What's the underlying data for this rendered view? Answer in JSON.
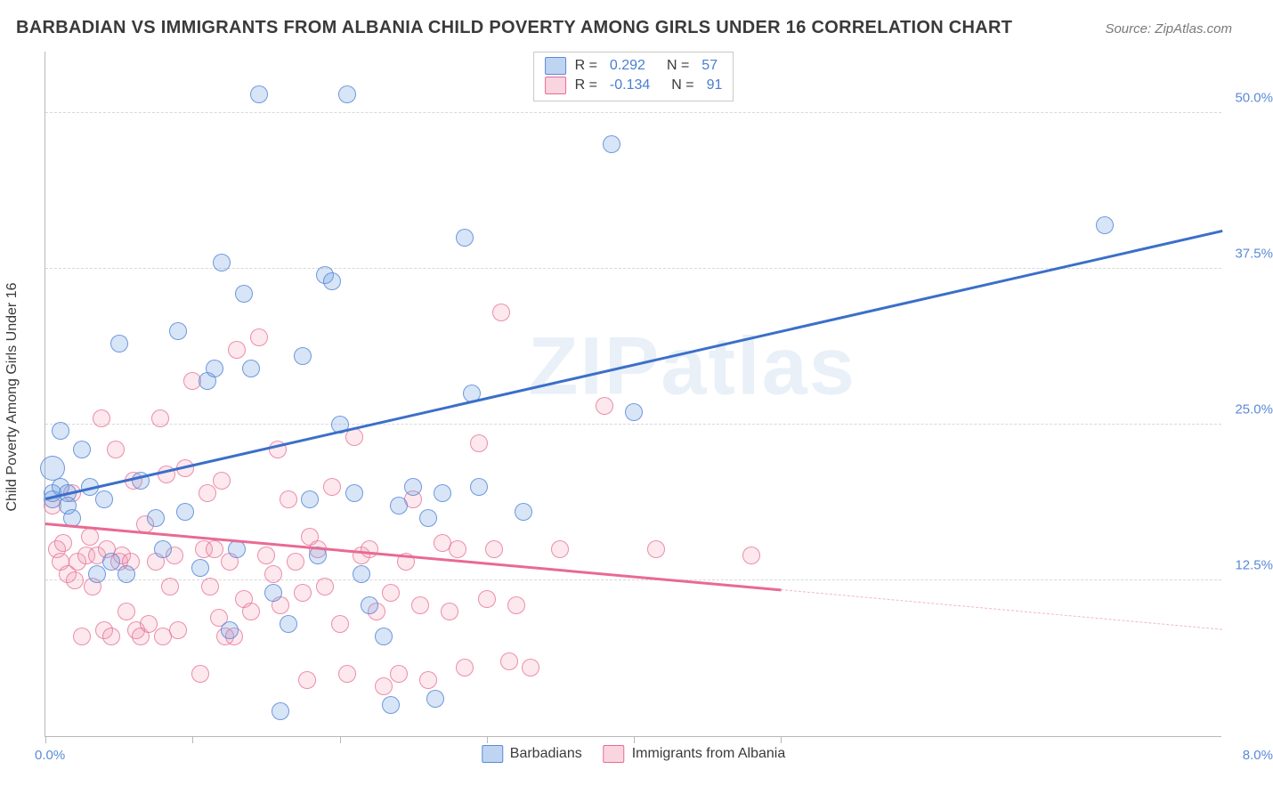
{
  "title": "BARBADIAN VS IMMIGRANTS FROM ALBANIA CHILD POVERTY AMONG GIRLS UNDER 16 CORRELATION CHART",
  "source": "Source: ZipAtlas.com",
  "watermark": "ZIPatlas",
  "ylabel": "Child Poverty Among Girls Under 16",
  "chart": {
    "type": "scatter",
    "xlim": [
      0,
      8
    ],
    "ylim": [
      0,
      55
    ],
    "xtick_positions": [
      0,
      1,
      2,
      3,
      4,
      5
    ],
    "xtick_labels": {
      "min": "0.0%",
      "max": "8.0%"
    },
    "ytick_positions": [
      12.5,
      25,
      37.5,
      50
    ],
    "ytick_labels": [
      "12.5%",
      "25.0%",
      "37.5%",
      "50.0%"
    ],
    "grid_color": "#d8d8d8",
    "axis_color": "#b8b8b8",
    "background_color": "#ffffff",
    "point_radius": 9,
    "point_radius_large": 13
  },
  "series": {
    "blue": {
      "label": "Barbadians",
      "color_fill": "rgba(110,160,225,0.28)",
      "color_stroke": "#5a8ad8",
      "R": "0.292",
      "N": "57",
      "trend": {
        "x1": 0.0,
        "y1": 19.0,
        "x2": 8.0,
        "y2": 40.5,
        "solid_until": 8.0
      },
      "points": [
        [
          0.05,
          21.5,
          13
        ],
        [
          0.05,
          19.5,
          9
        ],
        [
          0.05,
          19.0,
          9
        ],
        [
          0.1,
          20.0,
          9
        ],
        [
          0.1,
          24.5,
          9
        ],
        [
          0.15,
          19.5,
          9
        ],
        [
          0.15,
          18.5,
          9
        ],
        [
          0.18,
          17.5,
          9
        ],
        [
          0.25,
          23.0,
          9
        ],
        [
          0.3,
          20.0,
          9
        ],
        [
          0.35,
          13.0,
          9
        ],
        [
          0.4,
          19.0,
          9
        ],
        [
          0.45,
          14.0,
          9
        ],
        [
          0.5,
          31.5,
          9
        ],
        [
          0.55,
          13.0,
          9
        ],
        [
          0.65,
          20.5,
          9
        ],
        [
          0.75,
          17.5,
          9
        ],
        [
          0.8,
          15.0,
          9
        ],
        [
          0.9,
          32.5,
          9
        ],
        [
          0.95,
          18.0,
          9
        ],
        [
          1.05,
          13.5,
          9
        ],
        [
          1.1,
          28.5,
          9
        ],
        [
          1.15,
          29.5,
          9
        ],
        [
          1.2,
          38.0,
          9
        ],
        [
          1.25,
          8.5,
          9
        ],
        [
          1.3,
          15.0,
          9
        ],
        [
          1.35,
          35.5,
          9
        ],
        [
          1.4,
          29.5,
          9
        ],
        [
          1.45,
          51.5,
          9
        ],
        [
          1.55,
          11.5,
          9
        ],
        [
          1.6,
          2.0,
          9
        ],
        [
          1.65,
          9.0,
          9
        ],
        [
          1.75,
          30.5,
          9
        ],
        [
          1.8,
          19.0,
          9
        ],
        [
          1.85,
          14.5,
          9
        ],
        [
          1.9,
          37.0,
          9
        ],
        [
          1.95,
          36.5,
          9
        ],
        [
          2.0,
          25.0,
          9
        ],
        [
          2.05,
          51.5,
          9
        ],
        [
          2.1,
          19.5,
          9
        ],
        [
          2.15,
          13.0,
          9
        ],
        [
          2.2,
          10.5,
          9
        ],
        [
          2.3,
          8.0,
          9
        ],
        [
          2.35,
          2.5,
          9
        ],
        [
          2.4,
          18.5,
          9
        ],
        [
          2.5,
          20.0,
          9
        ],
        [
          2.6,
          17.5,
          9
        ],
        [
          2.65,
          3.0,
          9
        ],
        [
          2.7,
          19.5,
          9
        ],
        [
          2.85,
          40.0,
          9
        ],
        [
          2.9,
          27.5,
          9
        ],
        [
          2.95,
          20.0,
          9
        ],
        [
          3.25,
          18.0,
          9
        ],
        [
          3.85,
          47.5,
          9
        ],
        [
          4.0,
          26.0,
          9
        ],
        [
          7.2,
          41.0,
          9
        ]
      ]
    },
    "pink": {
      "label": "Immigrants from Albania",
      "color_fill": "rgba(240,150,175,0.22)",
      "color_stroke": "#e86a95",
      "R": "-0.134",
      "N": "91",
      "trend": {
        "x1": 0.0,
        "y1": 17.0,
        "x2": 8.0,
        "y2": 8.5,
        "solid_until": 5.0
      },
      "points": [
        [
          0.05,
          18.5,
          9
        ],
        [
          0.08,
          15.0,
          9
        ],
        [
          0.1,
          14.0,
          9
        ],
        [
          0.12,
          15.5,
          9
        ],
        [
          0.15,
          13.0,
          9
        ],
        [
          0.18,
          19.5,
          9
        ],
        [
          0.2,
          12.5,
          9
        ],
        [
          0.22,
          14.0,
          9
        ],
        [
          0.25,
          8.0,
          9
        ],
        [
          0.28,
          14.5,
          9
        ],
        [
          0.3,
          16.0,
          9
        ],
        [
          0.32,
          12.0,
          9
        ],
        [
          0.35,
          14.5,
          9
        ],
        [
          0.38,
          25.5,
          9
        ],
        [
          0.4,
          8.5,
          9
        ],
        [
          0.42,
          15.0,
          9
        ],
        [
          0.45,
          8.0,
          9
        ],
        [
          0.48,
          23.0,
          9
        ],
        [
          0.5,
          14.0,
          9
        ],
        [
          0.52,
          14.5,
          9
        ],
        [
          0.55,
          10.0,
          9
        ],
        [
          0.58,
          14.0,
          9
        ],
        [
          0.6,
          20.5,
          9
        ],
        [
          0.62,
          8.5,
          9
        ],
        [
          0.65,
          8.0,
          9
        ],
        [
          0.68,
          17.0,
          9
        ],
        [
          0.7,
          9.0,
          9
        ],
        [
          0.75,
          14.0,
          9
        ],
        [
          0.78,
          25.5,
          9
        ],
        [
          0.8,
          8.0,
          9
        ],
        [
          0.82,
          21.0,
          9
        ],
        [
          0.85,
          12.0,
          9
        ],
        [
          0.88,
          14.5,
          9
        ],
        [
          0.9,
          8.5,
          9
        ],
        [
          0.95,
          21.5,
          9
        ],
        [
          1.0,
          28.5,
          9
        ],
        [
          1.05,
          5.0,
          9
        ],
        [
          1.08,
          15.0,
          9
        ],
        [
          1.1,
          19.5,
          9
        ],
        [
          1.12,
          12.0,
          9
        ],
        [
          1.15,
          15.0,
          9
        ],
        [
          1.18,
          9.5,
          9
        ],
        [
          1.2,
          20.5,
          9
        ],
        [
          1.22,
          8.0,
          9
        ],
        [
          1.25,
          14.0,
          9
        ],
        [
          1.28,
          8.0,
          9
        ],
        [
          1.3,
          31.0,
          9
        ],
        [
          1.35,
          11.0,
          9
        ],
        [
          1.4,
          10.0,
          9
        ],
        [
          1.45,
          32.0,
          9
        ],
        [
          1.5,
          14.5,
          9
        ],
        [
          1.55,
          13.0,
          9
        ],
        [
          1.58,
          23.0,
          9
        ],
        [
          1.6,
          10.5,
          9
        ],
        [
          1.65,
          19.0,
          9
        ],
        [
          1.7,
          14.0,
          9
        ],
        [
          1.75,
          11.5,
          9
        ],
        [
          1.78,
          4.5,
          9
        ],
        [
          1.8,
          16.0,
          9
        ],
        [
          1.85,
          15.0,
          9
        ],
        [
          1.9,
          12.0,
          9
        ],
        [
          1.95,
          20.0,
          9
        ],
        [
          2.0,
          9.0,
          9
        ],
        [
          2.05,
          5.0,
          9
        ],
        [
          2.1,
          24.0,
          9
        ],
        [
          2.15,
          14.5,
          9
        ],
        [
          2.2,
          15.0,
          9
        ],
        [
          2.25,
          10.0,
          9
        ],
        [
          2.3,
          4.0,
          9
        ],
        [
          2.35,
          11.5,
          9
        ],
        [
          2.4,
          5.0,
          9
        ],
        [
          2.45,
          14.0,
          9
        ],
        [
          2.5,
          19.0,
          9
        ],
        [
          2.55,
          10.5,
          9
        ],
        [
          2.6,
          4.5,
          9
        ],
        [
          2.7,
          15.5,
          9
        ],
        [
          2.75,
          10.0,
          9
        ],
        [
          2.8,
          15.0,
          9
        ],
        [
          2.85,
          5.5,
          9
        ],
        [
          2.95,
          23.5,
          9
        ],
        [
          3.0,
          11.0,
          9
        ],
        [
          3.05,
          15.0,
          9
        ],
        [
          3.1,
          34.0,
          9
        ],
        [
          3.15,
          6.0,
          9
        ],
        [
          3.2,
          10.5,
          9
        ],
        [
          3.3,
          5.5,
          9
        ],
        [
          3.5,
          15.0,
          9
        ],
        [
          3.8,
          26.5,
          9
        ],
        [
          4.15,
          15.0,
          9
        ],
        [
          4.8,
          14.5,
          9
        ]
      ]
    }
  },
  "legend_R_label": "R =",
  "legend_N_label": "N ="
}
